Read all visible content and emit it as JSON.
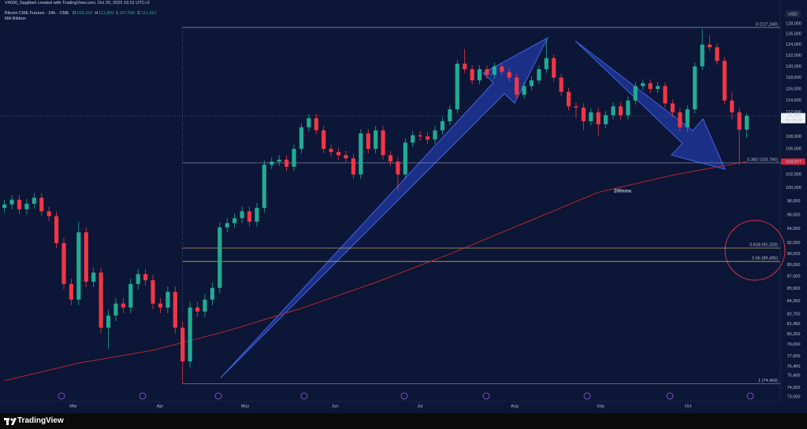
{
  "chart_data": {
    "type": "candlestick",
    "credit": "V4000_Sagittarii created with TradingView.com, Oct 20, 2025 16:31 UTC+2",
    "title": "Bitcoin CME Futures · 24h · CME",
    "subtitle": "MA Ribbon",
    "ohlc": [
      {
        "key": "O",
        "value": "109,100"
      },
      {
        "key": "H",
        "value": "111,850"
      },
      {
        "key": "L",
        "value": "107,690"
      },
      {
        "key": "C",
        "value": "111,410"
      }
    ],
    "currency": "USD",
    "log_scale": true,
    "up_color": "#22ab94",
    "down_color": "#f23645",
    "ylim": [
      72500,
      129500
    ],
    "yticks": [
      {
        "value": 128000,
        "label": "128,000"
      },
      {
        "value": 126000,
        "label": "126,000"
      },
      {
        "value": 124000,
        "label": "124,000"
      },
      {
        "value": 122000,
        "label": "122,000"
      },
      {
        "value": 120000,
        "label": "120,000"
      },
      {
        "value": 118000,
        "label": "118,000"
      },
      {
        "value": 116000,
        "label": "116,000"
      },
      {
        "value": 114000,
        "label": "114,000"
      },
      {
        "value": 112000,
        "label": "112,000"
      },
      {
        "value": 108000,
        "label": "108,000"
      },
      {
        "value": 106000,
        "label": "106,000"
      },
      {
        "value": 102000,
        "label": "102,000"
      },
      {
        "value": 100000,
        "label": "100,000"
      },
      {
        "value": 98000,
        "label": "98,000"
      },
      {
        "value": 96000,
        "label": "96,000"
      },
      {
        "value": 94000,
        "label": "94,000"
      },
      {
        "value": 92000,
        "label": "92,000"
      },
      {
        "value": 90500,
        "label": "90,500"
      },
      {
        "value": 89000,
        "label": "89,000"
      },
      {
        "value": 87500,
        "label": "87,500"
      },
      {
        "value": 85900,
        "label": "85,900"
      },
      {
        "value": 84300,
        "label": "84,300"
      },
      {
        "value": 82700,
        "label": "82,700"
      },
      {
        "value": 81450,
        "label": "81,450"
      },
      {
        "value": 80200,
        "label": "80,200"
      },
      {
        "value": 79000,
        "label": "79,000"
      },
      {
        "value": 77600,
        "label": "77,600"
      },
      {
        "value": 76400,
        "label": "76,400"
      },
      {
        "value": 75400,
        "label": "75,400"
      },
      {
        "value": 74000,
        "label": "74,000"
      },
      {
        "value": 73000,
        "label": "73,000"
      }
    ],
    "xlim": [
      -0.6,
      104.5
    ],
    "xticks": [
      {
        "value": 9.27,
        "label": "Mar"
      },
      {
        "value": 20.95,
        "label": "Apr"
      },
      {
        "value": 32.42,
        "label": "May"
      },
      {
        "value": 44.52,
        "label": "Jun"
      },
      {
        "value": 55.98,
        "label": "Jul"
      },
      {
        "value": 68.72,
        "label": "Aug"
      },
      {
        "value": 80.3,
        "label": "Sep"
      },
      {
        "value": 92.08,
        "label": "Oct"
      }
    ],
    "candles": [
      [
        97000,
        98200,
        96300,
        97500
      ],
      [
        97500,
        98900,
        96800,
        98200
      ],
      [
        98200,
        98900,
        96100,
        96800
      ],
      [
        96800,
        98300,
        96100,
        97600
      ],
      [
        97600,
        99200,
        96900,
        98500
      ],
      [
        98500,
        99200,
        95800,
        96500
      ],
      [
        96500,
        97200,
        95100,
        95800
      ],
      [
        95800,
        96500,
        91300,
        92000
      ],
      [
        92000,
        92700,
        85800,
        86500
      ],
      [
        86500,
        87200,
        83800,
        84500
      ],
      [
        84500,
        95000,
        83800,
        93500
      ],
      [
        93500,
        94200,
        86100,
        86800
      ],
      [
        86800,
        88700,
        86100,
        88000
      ],
      [
        88000,
        88700,
        80300,
        81000
      ],
      [
        81000,
        83200,
        78500,
        82500
      ],
      [
        82500,
        84700,
        81800,
        84000
      ],
      [
        84000,
        84700,
        82800,
        83500
      ],
      [
        83500,
        87200,
        82800,
        86500
      ],
      [
        86500,
        88500,
        85800,
        87800
      ],
      [
        87800,
        88500,
        86300,
        87000
      ],
      [
        87000,
        87700,
        83300,
        84000
      ],
      [
        84000,
        84700,
        82800,
        83500
      ],
      [
        83500,
        86200,
        82800,
        85500
      ],
      [
        85500,
        86200,
        80300,
        81000
      ],
      [
        81000,
        81700,
        74450,
        77000
      ],
      [
        77000,
        84200,
        76300,
        83500
      ],
      [
        83500,
        84200,
        82300,
        83000
      ],
      [
        83000,
        85200,
        82300,
        84500
      ],
      [
        84500,
        86700,
        83800,
        86000
      ],
      [
        86000,
        94900,
        85300,
        94200
      ],
      [
        94200,
        95500,
        93500,
        94800
      ],
      [
        94800,
        96200,
        94100,
        95500
      ],
      [
        95500,
        97200,
        94800,
        96500
      ],
      [
        96500,
        97200,
        94300,
        95000
      ],
      [
        95000,
        97700,
        94300,
        97000
      ],
      [
        97000,
        104200,
        96300,
        103500
      ],
      [
        103500,
        104700,
        102800,
        104000
      ],
      [
        104000,
        105000,
        103300,
        104300
      ],
      [
        104300,
        105000,
        102500,
        103200
      ],
      [
        103200,
        106700,
        102500,
        106000
      ],
      [
        106000,
        110200,
        105300,
        109500
      ],
      [
        109500,
        111700,
        108800,
        111000
      ],
      [
        111000,
        111700,
        108300,
        109000
      ],
      [
        109000,
        109700,
        105300,
        106000
      ],
      [
        106000,
        106700,
        104800,
        105500
      ],
      [
        105500,
        106200,
        104300,
        105000
      ],
      [
        105000,
        105700,
        103800,
        104500
      ],
      [
        104500,
        105200,
        101300,
        102000
      ],
      [
        102000,
        109200,
        101300,
        108500
      ],
      [
        108500,
        109200,
        105300,
        106000
      ],
      [
        106000,
        109700,
        105300,
        109000
      ],
      [
        109000,
        109700,
        104300,
        105000
      ],
      [
        105000,
        105700,
        103300,
        104000
      ],
      [
        104000,
        104700,
        99500,
        102000
      ],
      [
        102000,
        107700,
        101300,
        107000
      ],
      [
        107000,
        108900,
        106300,
        108200
      ],
      [
        108200,
        108900,
        107300,
        108000
      ],
      [
        108000,
        108700,
        106800,
        107500
      ],
      [
        107500,
        109700,
        106800,
        109000
      ],
      [
        109000,
        111200,
        108300,
        110500
      ],
      [
        110500,
        113200,
        109800,
        112500
      ],
      [
        112500,
        121200,
        111800,
        120500
      ],
      [
        120500,
        123200,
        118800,
        119500
      ],
      [
        119500,
        120200,
        116800,
        117500
      ],
      [
        117500,
        120200,
        116800,
        119500
      ],
      [
        119500,
        120200,
        117800,
        118500
      ],
      [
        118500,
        120700,
        117800,
        120000
      ],
      [
        120000,
        120700,
        118300,
        119000
      ],
      [
        119000,
        119700,
        117300,
        118000
      ],
      [
        118000,
        118700,
        114300,
        115000
      ],
      [
        115000,
        117200,
        114300,
        116500
      ],
      [
        116500,
        118200,
        115800,
        117500
      ],
      [
        117500,
        120200,
        116800,
        119500
      ],
      [
        119500,
        124900,
        118800,
        121500
      ],
      [
        121500,
        122200,
        117300,
        118000
      ],
      [
        118000,
        118700,
        114800,
        115500
      ],
      [
        115500,
        116200,
        112300,
        113000
      ],
      [
        113000,
        113700,
        111000,
        112800
      ],
      [
        112800,
        113500,
        109000,
        110500
      ],
      [
        110500,
        112700,
        109800,
        112000
      ],
      [
        112000,
        112700,
        108000,
        110000
      ],
      [
        110000,
        112200,
        109300,
        111500
      ],
      [
        111500,
        113700,
        110800,
        113000
      ],
      [
        113000,
        113700,
        110800,
        111500
      ],
      [
        111500,
        114700,
        110800,
        114000
      ],
      [
        114000,
        117200,
        113300,
        116500
      ],
      [
        116500,
        117700,
        115800,
        117000
      ],
      [
        117000,
        117700,
        115300,
        116000
      ],
      [
        116000,
        117200,
        115300,
        116500
      ],
      [
        116500,
        117200,
        112800,
        113500
      ],
      [
        113500,
        114200,
        111300,
        112000
      ],
      [
        112000,
        112700,
        108800,
        109500
      ],
      [
        109500,
        113200,
        108800,
        112500
      ],
      [
        112500,
        120700,
        111800,
        120000
      ],
      [
        120000,
        126900,
        119300,
        124000
      ],
      [
        124000,
        125800,
        122800,
        123500
      ],
      [
        123500,
        124200,
        120300,
        121000
      ],
      [
        121000,
        121700,
        113300,
        114000
      ],
      [
        114000,
        115400,
        110800,
        112000
      ],
      [
        112000,
        112700,
        103500,
        109100
      ],
      [
        109100,
        111850,
        107690,
        111410
      ]
    ],
    "sma": {
      "name": "200sma",
      "color": "#b22833",
      "x": [
        0,
        10,
        20,
        30,
        40,
        50,
        60,
        70,
        80,
        90,
        100
      ],
      "values": [
        74800,
        76800,
        78300,
        80600,
        83400,
        86700,
        90500,
        94800,
        99300,
        101900,
        103977
      ]
    },
    "fib_start": 24,
    "fib_levels": [
      {
        "label": "0 (127,240)",
        "value": 127240,
        "color": "#8c9bb8"
      },
      {
        "label": "0.382 (103,790)",
        "value": 103790,
        "color": "#8c9bb8"
      },
      {
        "label": "0.618 (91,320)",
        "value": 91320,
        "color": "#d4c16a"
      },
      {
        "label": "0.66 (89,495)",
        "value": 89495,
        "color": "#d4c16a"
      },
      {
        "label": "1 (74,450)",
        "value": 74450,
        "color": "#8c9bb8"
      }
    ],
    "last_price": {
      "value": 111410,
      "label": "111,410"
    },
    "countdown": "06:28:30",
    "sma_price": {
      "value": 103977,
      "label": "103,977"
    }
  },
  "footer": {
    "brand": "TradingView"
  }
}
